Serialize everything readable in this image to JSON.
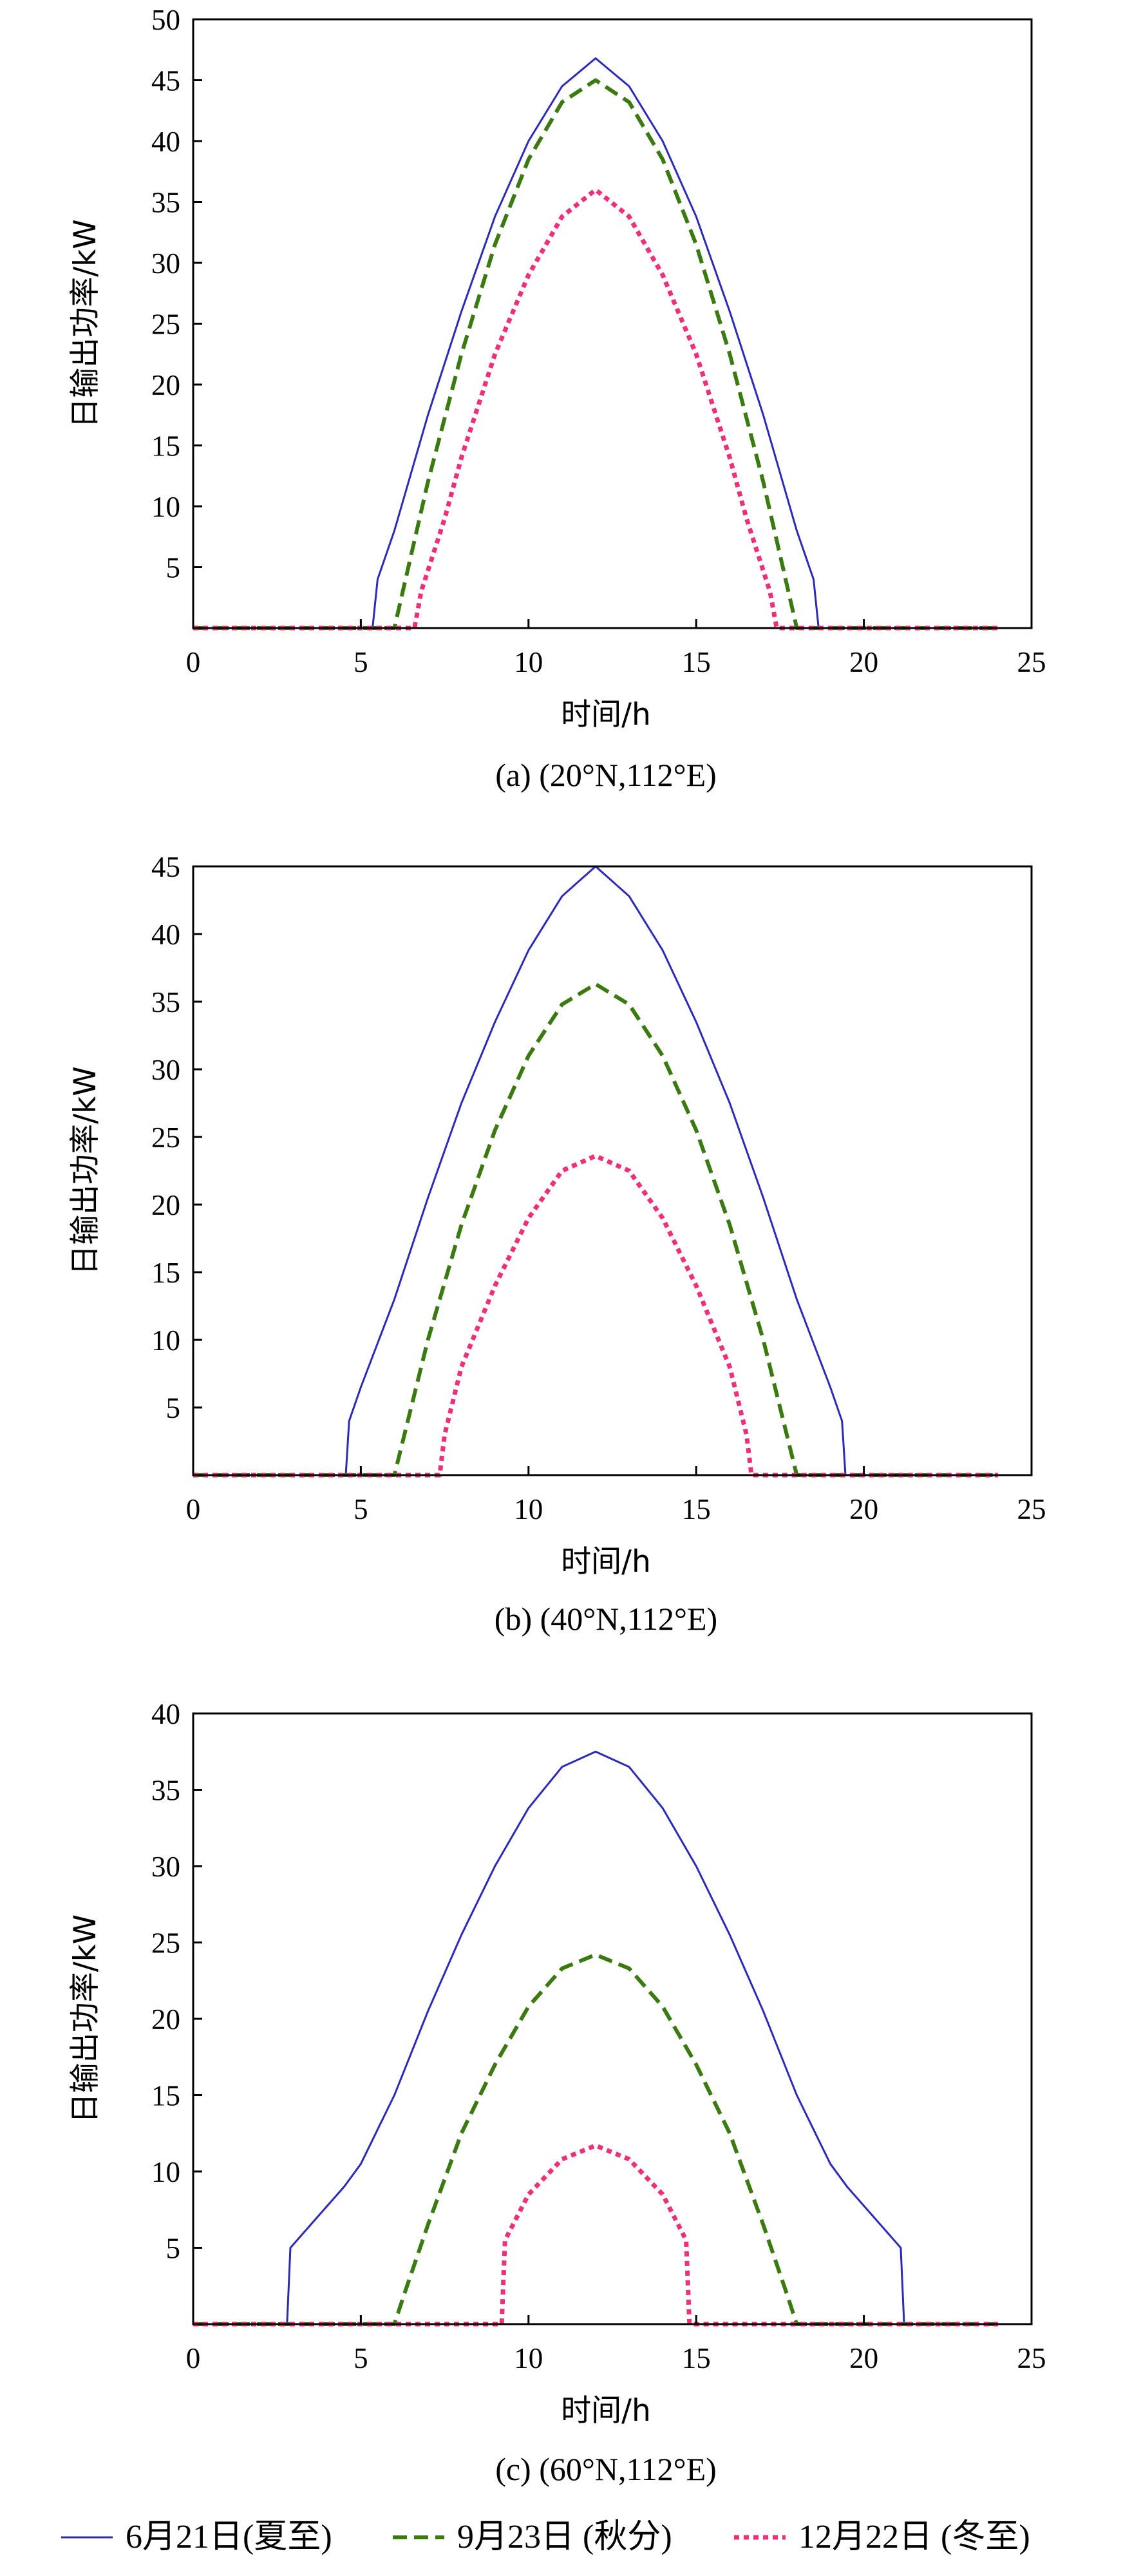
{
  "colors": {
    "summer": "#2b2bb8",
    "equinox": "#3a7a10",
    "winter": "#ee2f7a"
  },
  "legend": [
    {
      "name": "6月21日(夏至)",
      "color": "#2b2bb8",
      "dash": "solid"
    },
    {
      "name": "9月23日 (秋分)",
      "color": "#3a7a10",
      "dash": "dashed"
    },
    {
      "name": "12月22日 (冬至)",
      "color": "#ee2f7a",
      "dash": "dotted"
    }
  ],
  "chart_data": [
    {
      "type": "line",
      "caption": "(a) (20°N,112°E)",
      "xlabel": "时间/h",
      "ylabel": "日输出功率/kW",
      "xlim": [
        0,
        25
      ],
      "ylim": [
        0,
        50
      ],
      "xticks": [
        0,
        5,
        10,
        15,
        20,
        25
      ],
      "yticks": [
        5,
        10,
        15,
        20,
        25,
        30,
        35,
        40,
        45,
        50
      ],
      "grid": false,
      "series": [
        {
          "name": "6月21日(夏至)",
          "x": [
            0,
            5.35,
            5.5,
            6,
            7,
            8,
            9,
            10,
            11,
            12,
            13,
            14,
            15,
            16,
            17,
            18,
            18.5,
            18.65,
            24
          ],
          "y": [
            0,
            0,
            4,
            8,
            17.5,
            26,
            33.8,
            40,
            44.5,
            46.8,
            44.5,
            40,
            33.8,
            26,
            17.5,
            8,
            4,
            0,
            0
          ]
        },
        {
          "name": "9月23日 (秋分)",
          "x": [
            0,
            6,
            6.5,
            7,
            8,
            9,
            10,
            11,
            12,
            13,
            14,
            15,
            16,
            17,
            17.5,
            18,
            24
          ],
          "y": [
            0,
            0,
            6,
            12,
            22.5,
            31.5,
            38.5,
            43.2,
            45,
            43.2,
            38.5,
            31.5,
            22.5,
            12,
            6,
            0,
            0
          ]
        },
        {
          "name": "12月22日 (冬至)",
          "x": [
            0,
            6.6,
            6.8,
            7.5,
            8,
            9,
            10,
            11,
            12,
            13,
            14,
            15,
            16,
            16.5,
            17.2,
            17.4,
            24
          ],
          "y": [
            0,
            0,
            3,
            9,
            14,
            22.5,
            29,
            33.8,
            36,
            33.8,
            29,
            22.5,
            14,
            9,
            3,
            0,
            0
          ]
        }
      ]
    },
    {
      "type": "line",
      "caption": "(b) (40°N,112°E)",
      "xlabel": "时间/h",
      "ylabel": "日输出功率/kW",
      "xlim": [
        0,
        25
      ],
      "ylim": [
        0,
        45
      ],
      "xticks": [
        0,
        5,
        10,
        15,
        20,
        25
      ],
      "yticks": [
        5,
        10,
        15,
        20,
        25,
        30,
        35,
        40,
        45
      ],
      "grid": false,
      "series": [
        {
          "name": "6月21日(夏至)",
          "x": [
            0,
            4.55,
            4.65,
            5,
            6,
            7,
            8,
            9,
            10,
            11,
            12,
            13,
            14,
            15,
            16,
            17,
            18,
            19,
            19.35,
            19.45,
            24
          ],
          "y": [
            0,
            0,
            4,
            6.5,
            13,
            20.5,
            27.5,
            33.5,
            38.8,
            42.8,
            45,
            42.8,
            38.8,
            33.5,
            27.5,
            20.5,
            13,
            6.5,
            4,
            0,
            0
          ]
        },
        {
          "name": "9月23日 (秋分)",
          "x": [
            0,
            6,
            6.5,
            7,
            8,
            9,
            10,
            11,
            12,
            13,
            14,
            15,
            16,
            17,
            17.5,
            18,
            24
          ],
          "y": [
            0,
            0,
            5,
            10,
            18.5,
            25.5,
            31,
            34.8,
            36.3,
            34.8,
            31,
            25.5,
            18.5,
            10,
            5,
            0,
            0
          ]
        },
        {
          "name": "12月22日 (冬至)",
          "x": [
            0,
            7.35,
            7.5,
            8,
            9,
            10,
            11,
            12,
            13,
            14,
            15,
            16,
            16.5,
            16.65,
            24
          ],
          "y": [
            0,
            0,
            3,
            8,
            14,
            19,
            22.5,
            23.6,
            22.5,
            19,
            14,
            8,
            3,
            0,
            0
          ]
        }
      ]
    },
    {
      "type": "line",
      "caption": "(c) (60°N,112°E)",
      "xlabel": "时间/h",
      "ylabel": "日输出功率/kW",
      "xlim": [
        0,
        25
      ],
      "ylim": [
        0,
        40
      ],
      "xticks": [
        0,
        5,
        10,
        15,
        20,
        25
      ],
      "yticks": [
        5,
        10,
        15,
        20,
        25,
        30,
        35,
        40
      ],
      "grid": false,
      "series": [
        {
          "name": "6月21日(夏至)",
          "x": [
            0,
            2.8,
            2.9,
            3.5,
            4.5,
            5,
            6,
            7,
            8,
            9,
            10,
            11,
            12,
            13,
            14,
            15,
            16,
            17,
            18,
            19,
            19.5,
            20.5,
            21.1,
            21.2,
            24
          ],
          "y": [
            0,
            0,
            5,
            6.5,
            9,
            10.5,
            15,
            20.5,
            25.5,
            30,
            33.8,
            36.5,
            37.5,
            36.5,
            33.8,
            30,
            25.5,
            20.5,
            15,
            10.5,
            9,
            6.5,
            5,
            0,
            0
          ]
        },
        {
          "name": "9月23日 (秋分)",
          "x": [
            0,
            6,
            6.3,
            7,
            8,
            9,
            10,
            11,
            12,
            13,
            14,
            15,
            16,
            17,
            17.7,
            18,
            24
          ],
          "y": [
            0,
            0,
            2,
            6.5,
            12.5,
            17,
            20.8,
            23.3,
            24.2,
            23.3,
            20.8,
            17,
            12.5,
            6.5,
            2,
            0,
            0
          ]
        },
        {
          "name": "12月22日 (冬至)",
          "x": [
            0,
            9.2,
            9.3,
            10,
            11,
            12,
            13,
            14,
            14.7,
            14.8,
            24
          ],
          "y": [
            0,
            0,
            5.5,
            8.5,
            10.8,
            11.7,
            10.8,
            8.5,
            5.5,
            0,
            0
          ]
        }
      ]
    }
  ]
}
